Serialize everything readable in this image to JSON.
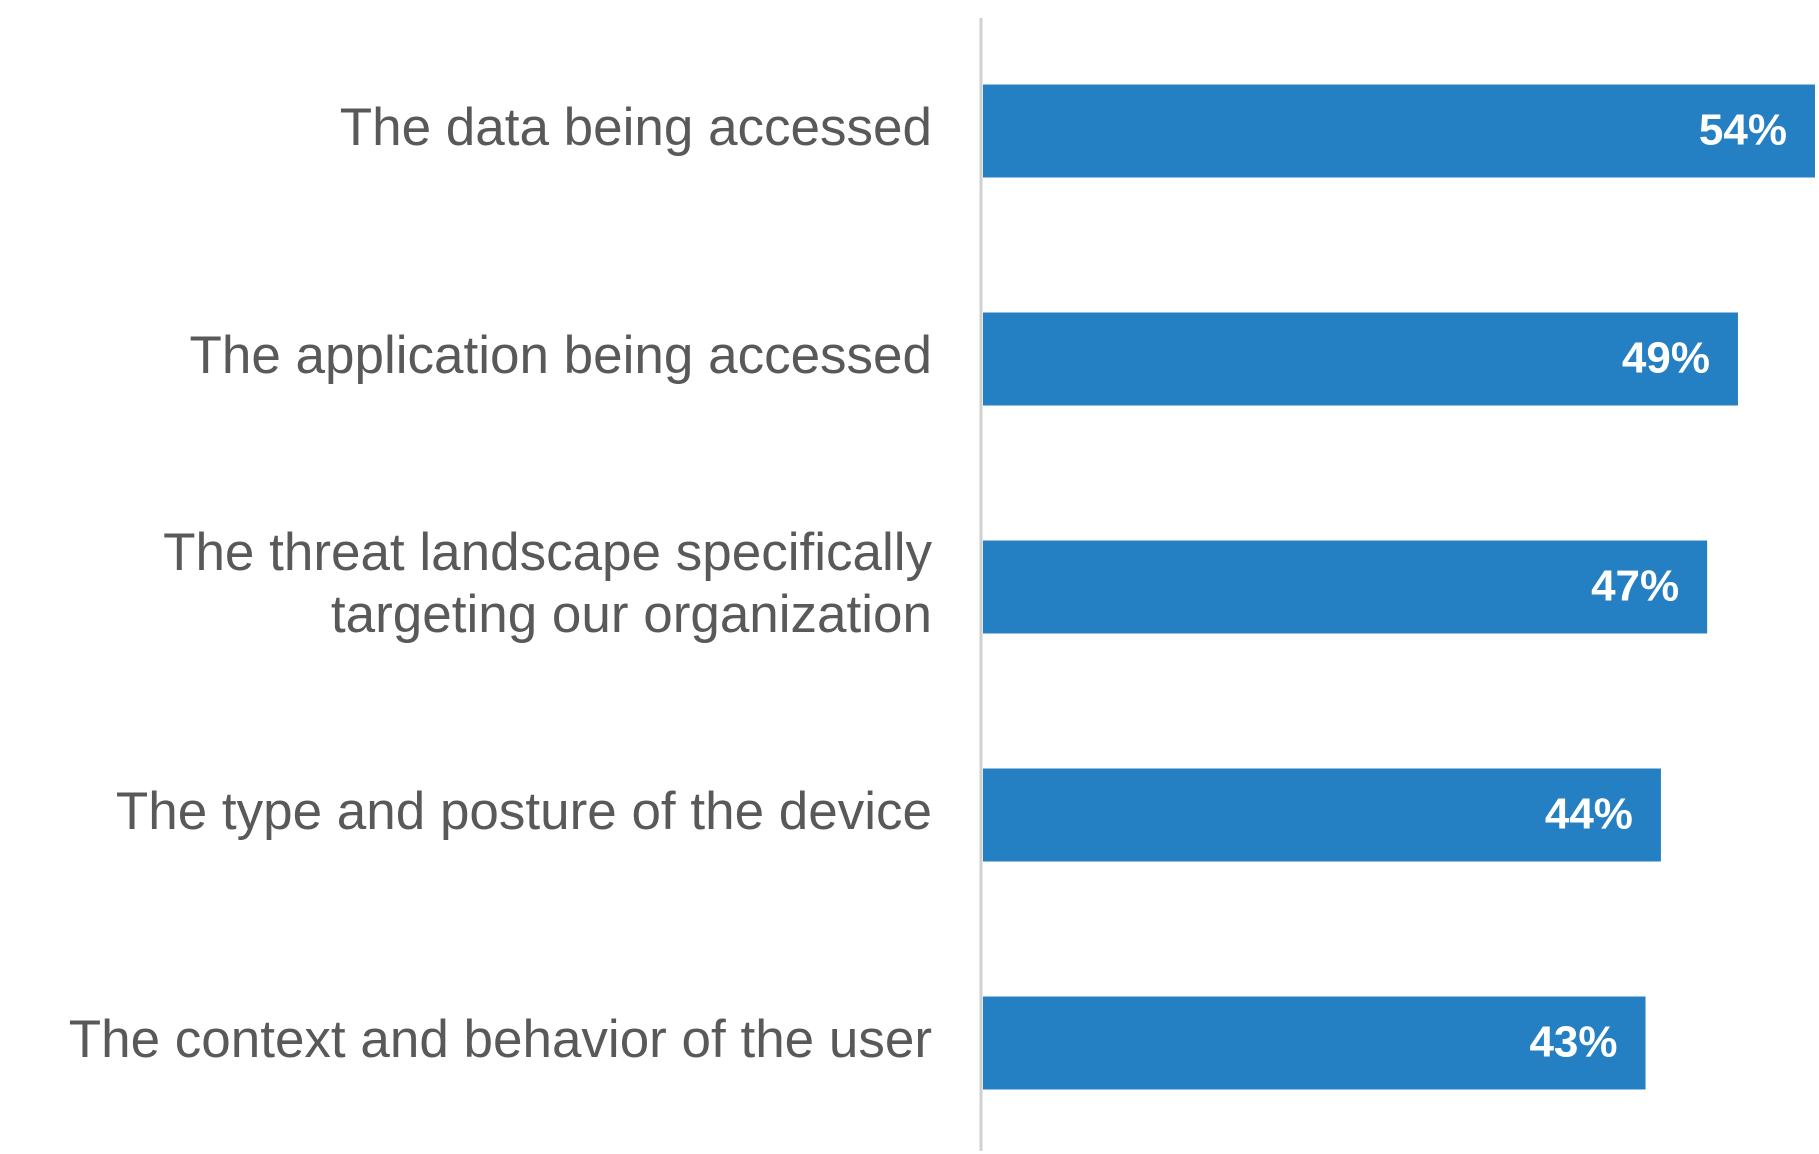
{
  "chart_data": {
    "type": "bar",
    "orientation": "horizontal",
    "categories": [
      "The data being accessed",
      "The application being accessed",
      "The threat landscape specifically\ntargeting our organization",
      "The type and posture of the device",
      "The context and behavior of the user"
    ],
    "values": [
      54,
      49,
      47,
      44,
      43
    ],
    "value_labels": [
      "54%",
      "49%",
      "47%",
      "44%",
      "43%"
    ],
    "color": "#2580c3"
  }
}
